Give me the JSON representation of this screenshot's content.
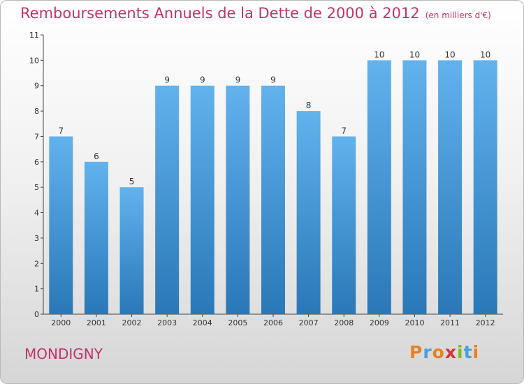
{
  "title": "Remboursements Annuels de la Dette de 2000 à 2012",
  "subtitle": "(en milliers d'€)",
  "town": "MONDIGNY",
  "logo": {
    "text": "Proxiti",
    "colors": [
      "#e8811f",
      "#4a9fd8",
      "#e8811f",
      "#d4343a",
      "#86b82d",
      "#4a9fd8",
      "#e8811f"
    ]
  },
  "colors": {
    "title": "#c2336a",
    "bar_top": "#62b2ee",
    "bar_bottom": "#2a78b7",
    "axis": "#444444"
  },
  "chart_data": {
    "type": "bar",
    "categories": [
      "2000",
      "2001",
      "2002",
      "2003",
      "2004",
      "2005",
      "2006",
      "2007",
      "2008",
      "2009",
      "2010",
      "2011",
      "2012"
    ],
    "values": [
      7,
      6,
      5,
      9,
      9,
      9,
      9,
      8,
      7,
      10,
      10,
      10,
      10
    ],
    "yticks": [
      "0",
      "1",
      "2",
      "3",
      "4",
      "5",
      "6",
      "7",
      "8",
      "9",
      "10",
      "11"
    ],
    "ylim": [
      0,
      11
    ],
    "grid": false,
    "data_labels": true
  }
}
